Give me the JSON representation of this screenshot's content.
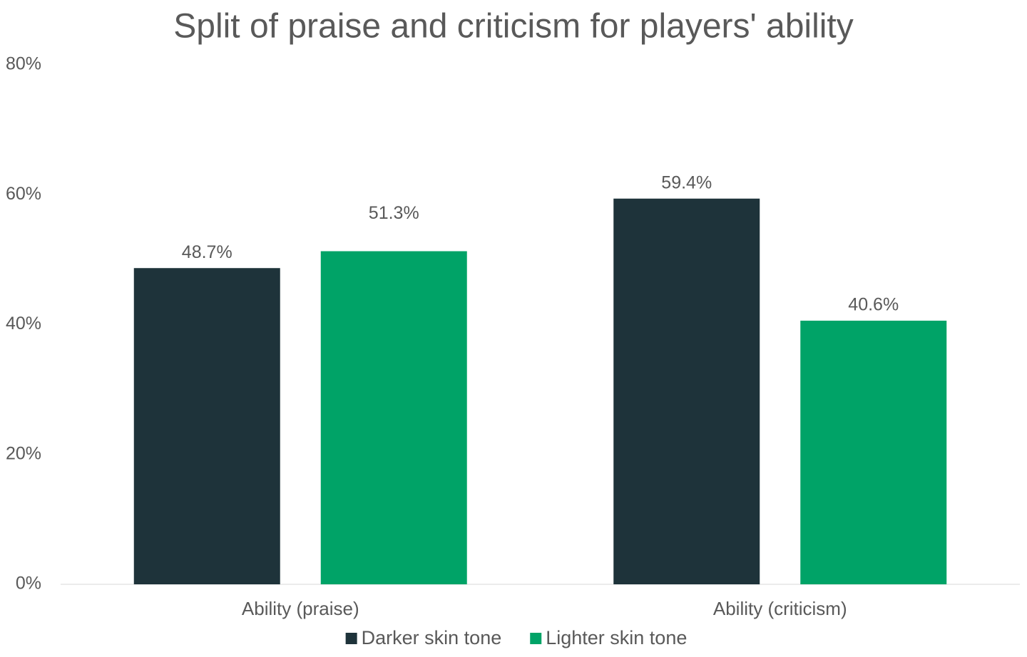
{
  "chart_data": {
    "type": "bar",
    "title": "Split of praise and criticism for players' ability",
    "categories": [
      "Ability (praise)",
      "Ability (criticism)"
    ],
    "series": [
      {
        "name": "Darker skin tone",
        "color": "#1e333a",
        "values": [
          48.7,
          59.4
        ],
        "value_labels": [
          "48.7%",
          "59.4%"
        ]
      },
      {
        "name": "Lighter skin tone",
        "color": "#00a367",
        "values": [
          51.3,
          40.6
        ],
        "value_labels": [
          "51.3%",
          "40.6%"
        ]
      }
    ],
    "ylim": [
      0,
      80
    ],
    "yticks": [
      {
        "value": 0,
        "label": "0%"
      },
      {
        "value": 20,
        "label": "20%"
      },
      {
        "value": 40,
        "label": "40%"
      },
      {
        "value": 60,
        "label": "60%"
      },
      {
        "value": 80,
        "label": "80%"
      }
    ],
    "grid": false,
    "legend": "bottom"
  }
}
